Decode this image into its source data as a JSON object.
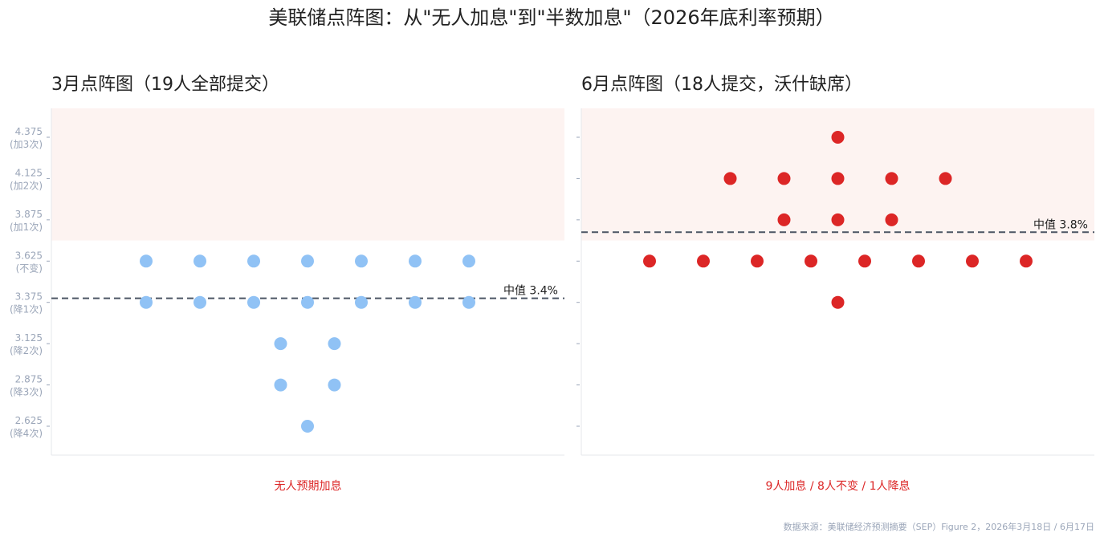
{
  "title": "美联储点阵图：从\"无人加息\"到\"半数加息\"（2026年底利率预期）",
  "source": "数据来源：美联储经济预测摘要（SEP）Figure 2，2026年3月18日 / 6月17日",
  "chart_data": [
    {
      "type": "dot",
      "title": "3月点阵图（19人全部提交）",
      "color": "#90c2f5",
      "values": [
        3.625,
        3.625,
        3.625,
        3.625,
        3.625,
        3.625,
        3.625,
        3.375,
        3.375,
        3.375,
        3.375,
        3.375,
        3.375,
        3.375,
        3.125,
        3.125,
        2.875,
        2.875,
        2.625
      ],
      "ylim": [
        2.45,
        4.55
      ],
      "yticks": [
        4.375,
        4.125,
        3.875,
        3.625,
        3.375,
        3.125,
        2.875,
        2.625
      ],
      "ytick_notes": [
        "(加3次)",
        "(加2次)",
        "(加1次)",
        "(不变)",
        "(降1次)",
        "(降2次)",
        "(降3次)",
        "(降4次)"
      ],
      "show_ytick_labels": true,
      "shade_above": 3.75,
      "shade_color": "#fdf3f1",
      "median": 3.4,
      "median_label": "中值 3.4%",
      "annotation": "无人预期加息"
    },
    {
      "type": "dot",
      "title": "6月点阵图（18人提交，沃什缺席）",
      "color": "#dc2626",
      "values": [
        4.375,
        4.125,
        4.125,
        4.125,
        4.125,
        4.125,
        3.875,
        3.875,
        3.875,
        3.625,
        3.625,
        3.625,
        3.625,
        3.625,
        3.625,
        3.625,
        3.625,
        3.375
      ],
      "ylim": [
        2.45,
        4.55
      ],
      "yticks": [
        4.375,
        4.125,
        3.875,
        3.625,
        3.375,
        3.125,
        2.875,
        2.625
      ],
      "show_ytick_labels": false,
      "shade_above": 3.75,
      "shade_color": "#fdf3f1",
      "median": 3.8,
      "median_label": "中值 3.8%",
      "annotation": "9人加息 / 8人不变 / 1人降息"
    }
  ]
}
